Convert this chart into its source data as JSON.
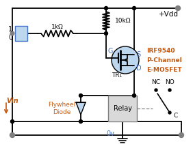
{
  "bg_color": "#ffffff",
  "line_color": "#000000",
  "blue_color": "#4472c4",
  "orange_color": "#c55a11",
  "gray_color": "#7f7f7f",
  "light_blue": "#bdd7ee",
  "light_gray": "#d9d9d9",
  "vdd_label": "+Vdd",
  "vin_label": "Vin",
  "r1_label": "1kΩ",
  "r2_label": "10kΩ",
  "mosfet_label": "IRF9540",
  "mosfet_type": "P-Channel",
  "mosfet_subtype": "E-MOSFET",
  "tr_label": "TR₁",
  "relay_label": "Relay",
  "flywheel_label": "Flywheel\nDiode",
  "g_label": "G",
  "s_label": "S",
  "d_label": "D",
  "nc_label": "NC",
  "no_label": "NO",
  "ov_label": "0v",
  "c_label": "C",
  "logic1_label": "1",
  "logic0_label": "0"
}
